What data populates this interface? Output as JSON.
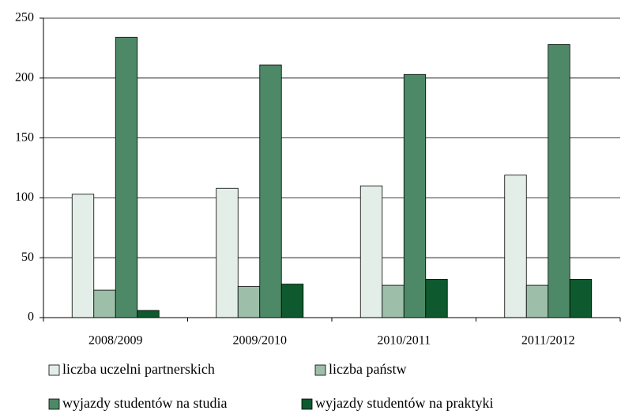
{
  "chart_data": {
    "type": "bar",
    "categories": [
      "2008/2009",
      "2009/2010",
      "2010/2011",
      "2011/2012"
    ],
    "series": [
      {
        "name": "liczba uczelni partnerskich",
        "color": "#e4eee8",
        "values": [
          103,
          108,
          110,
          119
        ]
      },
      {
        "name": "liczba państw",
        "color": "#9dbea8",
        "values": [
          23,
          26,
          27,
          27
        ]
      },
      {
        "name": "wyjazdy studentów na studia",
        "color": "#4e8967",
        "values": [
          234,
          211,
          203,
          228
        ]
      },
      {
        "name": "wyjazdy studentów na praktyki",
        "color": "#0e5a2e",
        "values": [
          6,
          28,
          32,
          32
        ]
      }
    ],
    "ylim": [
      0,
      250
    ],
    "yticks": [
      0,
      50,
      100,
      150,
      200,
      250
    ],
    "grid": true
  }
}
